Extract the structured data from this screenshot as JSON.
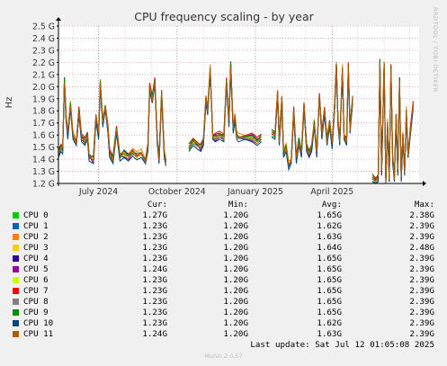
{
  "title": "CPU frequency scaling - by year",
  "ylabel": "Hz",
  "watermark": "RRDTOOL / TOBI OETIKER",
  "footer": "Munin 2.0.57",
  "last_update": "Last update: Sat Jul 12 01:05:08 2025",
  "colors": {
    "background": "#f0f0f0",
    "plot_bg": "#ffffff",
    "grid_minor": "#e6b0b0",
    "grid_major": "#d08080",
    "axis": "#000000"
  },
  "legend": {
    "headers": {
      "cur": "Cur:",
      "min": "Min:",
      "avg": "Avg:",
      "max": "Max:"
    },
    "rows": [
      {
        "name": "CPU 0",
        "color": "#00cc00",
        "cur": "1.27G",
        "min": "1.20G",
        "avg": "1.65G",
        "max": "2.38G"
      },
      {
        "name": "CPU 1",
        "color": "#0066b3",
        "cur": "1.23G",
        "min": "1.20G",
        "avg": "1.62G",
        "max": "2.39G"
      },
      {
        "name": "CPU 2",
        "color": "#ff8000",
        "cur": "1.23G",
        "min": "1.20G",
        "avg": "1.63G",
        "max": "2.39G"
      },
      {
        "name": "CPU 3",
        "color": "#ffcc00",
        "cur": "1.23G",
        "min": "1.20G",
        "avg": "1.64G",
        "max": "2.48G"
      },
      {
        "name": "CPU 4",
        "color": "#330099",
        "cur": "1.23G",
        "min": "1.20G",
        "avg": "1.65G",
        "max": "2.39G"
      },
      {
        "name": "CPU 5",
        "color": "#990099",
        "cur": "1.24G",
        "min": "1.20G",
        "avg": "1.65G",
        "max": "2.39G"
      },
      {
        "name": "CPU 6",
        "color": "#ccff00",
        "cur": "1.23G",
        "min": "1.20G",
        "avg": "1.65G",
        "max": "2.39G"
      },
      {
        "name": "CPU 7",
        "color": "#ff0000",
        "cur": "1.23G",
        "min": "1.20G",
        "avg": "1.65G",
        "max": "2.39G"
      },
      {
        "name": "CPU 8",
        "color": "#808080",
        "cur": "1.23G",
        "min": "1.20G",
        "avg": "1.65G",
        "max": "2.39G"
      },
      {
        "name": "CPU 9",
        "color": "#008f00",
        "cur": "1.23G",
        "min": "1.20G",
        "avg": "1.65G",
        "max": "2.39G"
      },
      {
        "name": "CPU 10",
        "color": "#00487d",
        "cur": "1.23G",
        "min": "1.20G",
        "avg": "1.62G",
        "max": "2.39G"
      },
      {
        "name": "CPU 11",
        "color": "#b35a00",
        "cur": "1.24G",
        "min": "1.20G",
        "avg": "1.63G",
        "max": "2.39G"
      }
    ]
  },
  "chart_data": {
    "type": "line",
    "ylabel": "Hz",
    "ylim": [
      1.2,
      2.5
    ],
    "y_unit": "G",
    "yticks": [
      1.2,
      1.3,
      1.4,
      1.5,
      1.6,
      1.7,
      1.8,
      1.9,
      2.0,
      2.1,
      2.2,
      2.3,
      2.4,
      2.5
    ],
    "ytick_labels": [
      "1.2 G",
      "1.3 G",
      "1.4 G",
      "1.5 G",
      "1.6 G",
      "1.7 G",
      "1.8 G",
      "1.9 G",
      "2.0 G",
      "2.1 G",
      "2.2 G",
      "2.3 G",
      "2.4 G",
      "2.5 G"
    ],
    "xlim": [
      "2024-05-15",
      "2025-07-12"
    ],
    "xticks": [
      {
        "date": "2024-07-01",
        "label": "July 2024"
      },
      {
        "date": "2024-10-01",
        "label": "October 2024"
      },
      {
        "date": "2025-01-01",
        "label": "January 2025"
      },
      {
        "date": "2025-04-01",
        "label": "April 2025"
      }
    ],
    "grid": true,
    "legend_position": "bottom",
    "series_note": "12 series CPU 0..11 drawn overlapping; values below are the approximate common envelope",
    "profile": [
      [
        "2024-05-15",
        1.45
      ],
      [
        "2024-05-18",
        1.5
      ],
      [
        "2024-05-20",
        1.48
      ],
      [
        "2024-05-22",
        2.05
      ],
      [
        "2024-05-24",
        1.75
      ],
      [
        "2024-05-26",
        1.6
      ],
      [
        "2024-05-29",
        1.85
      ],
      [
        "2024-06-01",
        1.6
      ],
      [
        "2024-06-05",
        1.55
      ],
      [
        "2024-06-08",
        1.8
      ],
      [
        "2024-06-11",
        1.58
      ],
      [
        "2024-06-15",
        1.55
      ],
      [
        "2024-06-18",
        1.6
      ],
      [
        "2024-06-20",
        1.42
      ],
      [
        "2024-06-25",
        1.4
      ],
      [
        "2024-06-28",
        1.75
      ],
      [
        "2024-07-01",
        1.6
      ],
      [
        "2024-07-03",
        2.03
      ],
      [
        "2024-07-06",
        1.7
      ],
      [
        "2024-07-09",
        1.85
      ],
      [
        "2024-07-12",
        1.65
      ],
      [
        "2024-07-14",
        1.45
      ],
      [
        "2024-07-18",
        1.4
      ],
      [
        "2024-07-22",
        1.65
      ],
      [
        "2024-07-26",
        1.42
      ],
      [
        "2024-07-31",
        1.45
      ],
      [
        "2024-08-05",
        1.42
      ],
      [
        "2024-08-10",
        1.46
      ],
      [
        "2024-08-15",
        1.43
      ],
      [
        "2024-08-20",
        1.45
      ],
      [
        "2024-08-25",
        1.4
      ],
      [
        "2024-08-28",
        1.5
      ],
      [
        "2024-08-30",
        2.0
      ],
      [
        "2024-09-02",
        1.9
      ],
      [
        "2024-09-05",
        2.05
      ],
      [
        "2024-09-08",
        1.55
      ],
      [
        "2024-09-10",
        1.4
      ],
      [
        "2024-09-13",
        1.95
      ],
      [
        "2024-09-16",
        1.45
      ],
      [
        "2024-09-18",
        1.38
      ],
      [
        "2024-10-15",
        1.5
      ],
      [
        "2024-10-20",
        1.55
      ],
      [
        "2024-10-25",
        1.52
      ],
      [
        "2024-10-29",
        1.5
      ],
      [
        "2024-11-01",
        1.55
      ],
      [
        "2024-11-04",
        1.9
      ],
      [
        "2024-11-06",
        1.8
      ],
      [
        "2024-11-09",
        2.15
      ],
      [
        "2024-11-12",
        1.6
      ],
      [
        "2024-11-15",
        1.58
      ],
      [
        "2024-11-20",
        1.6
      ],
      [
        "2024-11-25",
        1.58
      ],
      [
        "2024-11-28",
        2.05
      ],
      [
        "2024-12-01",
        1.7
      ],
      [
        "2024-12-03",
        2.18
      ],
      [
        "2024-12-06",
        1.65
      ],
      [
        "2024-12-08",
        1.75
      ],
      [
        "2024-12-10",
        1.6
      ],
      [
        "2024-12-12",
        1.58
      ],
      [
        "2024-12-20",
        1.6
      ],
      [
        "2024-12-28",
        1.58
      ],
      [
        "2025-01-03",
        1.55
      ],
      [
        "2025-01-08",
        1.58
      ],
      [
        "2025-01-20",
        1.62
      ],
      [
        "2025-01-24",
        1.6
      ],
      [
        "2025-01-27",
        1.95
      ],
      [
        "2025-01-29",
        1.55
      ],
      [
        "2025-02-01",
        1.9
      ],
      [
        "2025-02-03",
        1.45
      ],
      [
        "2025-02-06",
        1.5
      ],
      [
        "2025-02-09",
        1.35
      ],
      [
        "2025-02-12",
        1.4
      ],
      [
        "2025-02-15",
        1.8
      ],
      [
        "2025-02-18",
        1.4
      ],
      [
        "2025-02-21",
        1.55
      ],
      [
        "2025-02-24",
        1.45
      ],
      [
        "2025-02-27",
        1.85
      ],
      [
        "2025-03-02",
        1.5
      ],
      [
        "2025-03-05",
        1.45
      ],
      [
        "2025-03-08",
        1.5
      ],
      [
        "2025-03-11",
        1.7
      ],
      [
        "2025-03-14",
        1.45
      ],
      [
        "2025-03-17",
        1.95
      ],
      [
        "2025-03-20",
        1.6
      ],
      [
        "2025-03-23",
        1.8
      ],
      [
        "2025-03-26",
        1.55
      ],
      [
        "2025-03-29",
        1.7
      ],
      [
        "2025-04-01",
        1.52
      ],
      [
        "2025-04-04",
        1.85
      ],
      [
        "2025-04-06",
        2.18
      ],
      [
        "2025-04-08",
        1.7
      ],
      [
        "2025-04-10",
        1.55
      ],
      [
        "2025-04-13",
        2.15
      ],
      [
        "2025-04-15",
        1.6
      ],
      [
        "2025-04-18",
        1.55
      ],
      [
        "2025-04-20",
        2.17
      ],
      [
        "2025-04-22",
        1.65
      ],
      [
        "2025-04-25",
        1.9
      ],
      [
        "2025-05-18",
        1.25
      ],
      [
        "2025-05-22",
        1.22
      ],
      [
        "2025-05-25",
        1.25
      ],
      [
        "2025-05-27",
        2.2
      ],
      [
        "2025-05-29",
        1.3
      ],
      [
        "2025-06-01",
        2.18
      ],
      [
        "2025-06-03",
        1.22
      ],
      [
        "2025-06-05",
        1.7
      ],
      [
        "2025-06-07",
        1.25
      ],
      [
        "2025-06-09",
        2.15
      ],
      [
        "2025-06-11",
        1.4
      ],
      [
        "2025-06-13",
        1.25
      ],
      [
        "2025-06-15",
        1.75
      ],
      [
        "2025-06-17",
        1.3
      ],
      [
        "2025-06-19",
        2.05
      ],
      [
        "2025-06-21",
        1.25
      ],
      [
        "2025-06-23",
        1.6
      ],
      [
        "2025-06-25",
        1.3
      ],
      [
        "2025-06-27",
        1.8
      ],
      [
        "2025-06-29",
        1.45
      ],
      [
        "2025-07-02",
        1.65
      ],
      [
        "2025-07-05",
        1.85
      ]
    ]
  }
}
